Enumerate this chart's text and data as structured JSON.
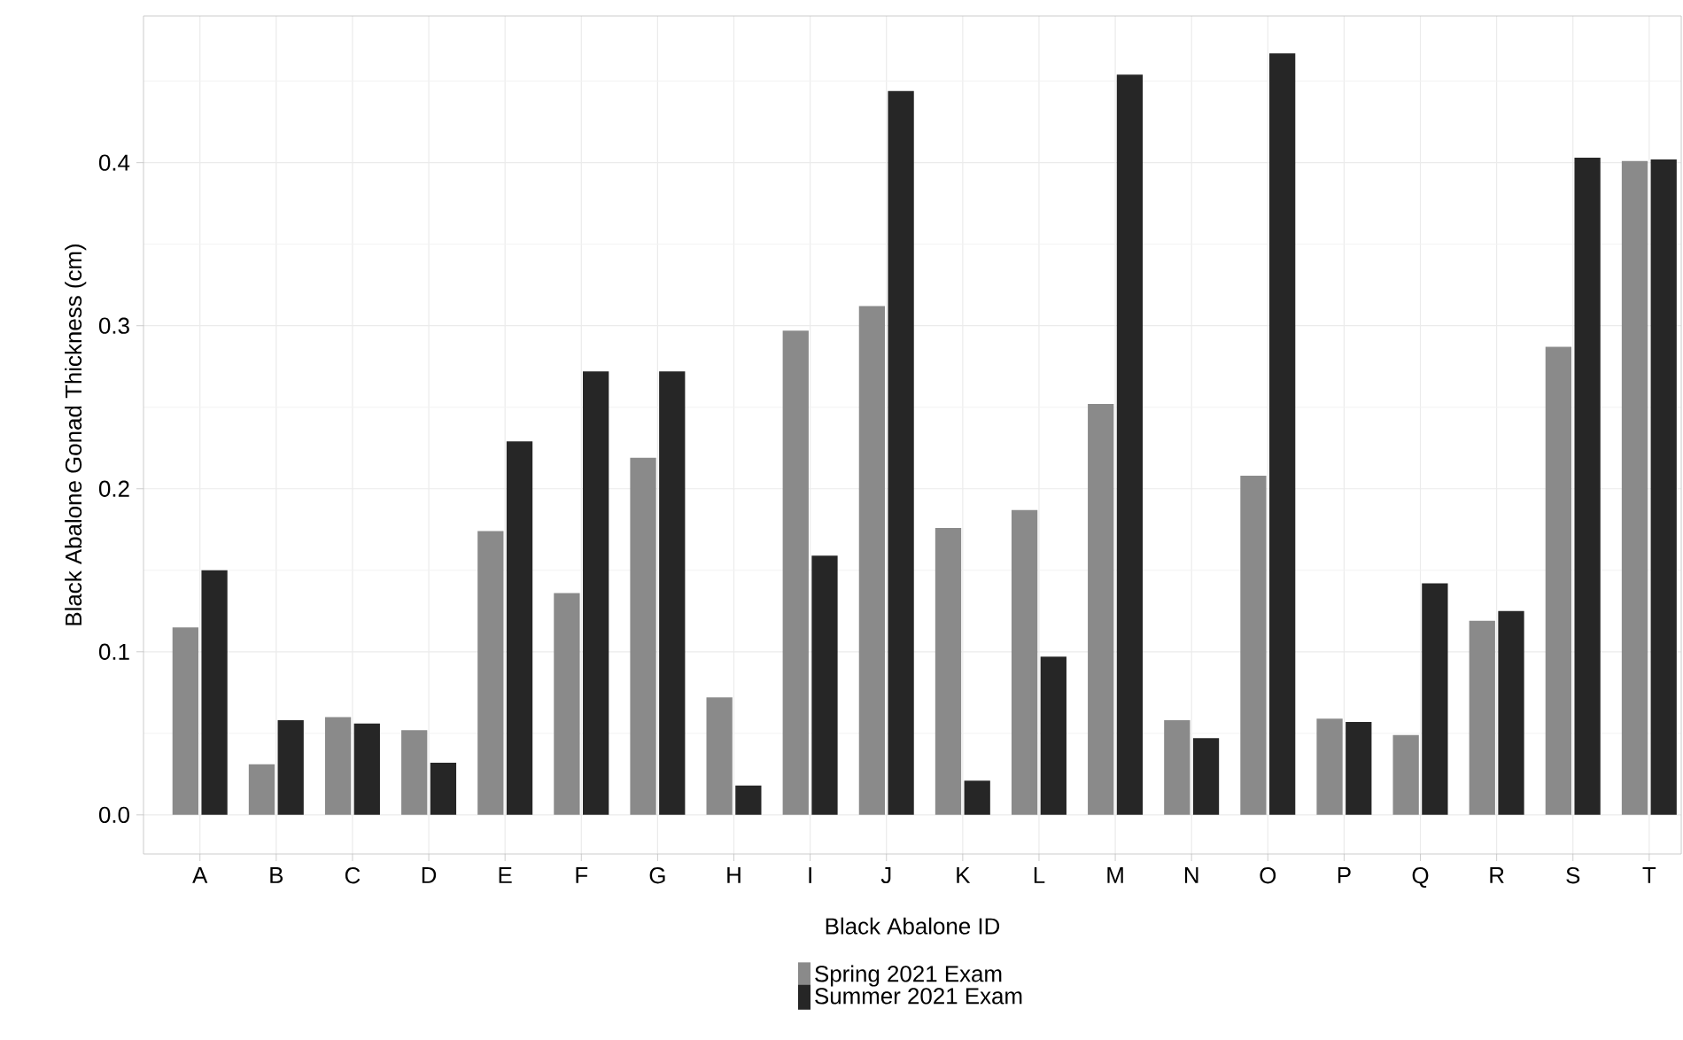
{
  "chart_data": {
    "type": "bar",
    "xlabel": "Black Abalone ID",
    "ylabel": "Black Abalone Gonad Thickness (cm)",
    "categories": [
      "A",
      "B",
      "C",
      "D",
      "E",
      "F",
      "G",
      "H",
      "I",
      "J",
      "K",
      "L",
      "M",
      "N",
      "O",
      "P",
      "Q",
      "R",
      "S",
      "T"
    ],
    "series": [
      {
        "name": "Spring 2021 Exam",
        "color": "#8a8a8a",
        "values": [
          0.115,
          0.031,
          0.06,
          0.052,
          0.174,
          0.136,
          0.219,
          0.072,
          0.297,
          0.312,
          0.176,
          0.187,
          0.252,
          0.058,
          0.208,
          0.059,
          0.049,
          0.119,
          0.287,
          0.401
        ]
      },
      {
        "name": "Summer 2021 Exam",
        "color": "#262626",
        "values": [
          0.15,
          0.058,
          0.056,
          0.032,
          0.229,
          0.272,
          0.272,
          0.018,
          0.159,
          0.444,
          0.021,
          0.097,
          0.454,
          0.047,
          0.467,
          0.057,
          0.142,
          0.125,
          0.403,
          0.402
        ]
      }
    ],
    "ylim": [
      -0.024,
      0.49
    ],
    "yticks": [
      {
        "value": 0,
        "label": "0.0"
      },
      0.1,
      0.2,
      0.3,
      0.4
    ],
    "grid": true,
    "legend": "bottom"
  }
}
